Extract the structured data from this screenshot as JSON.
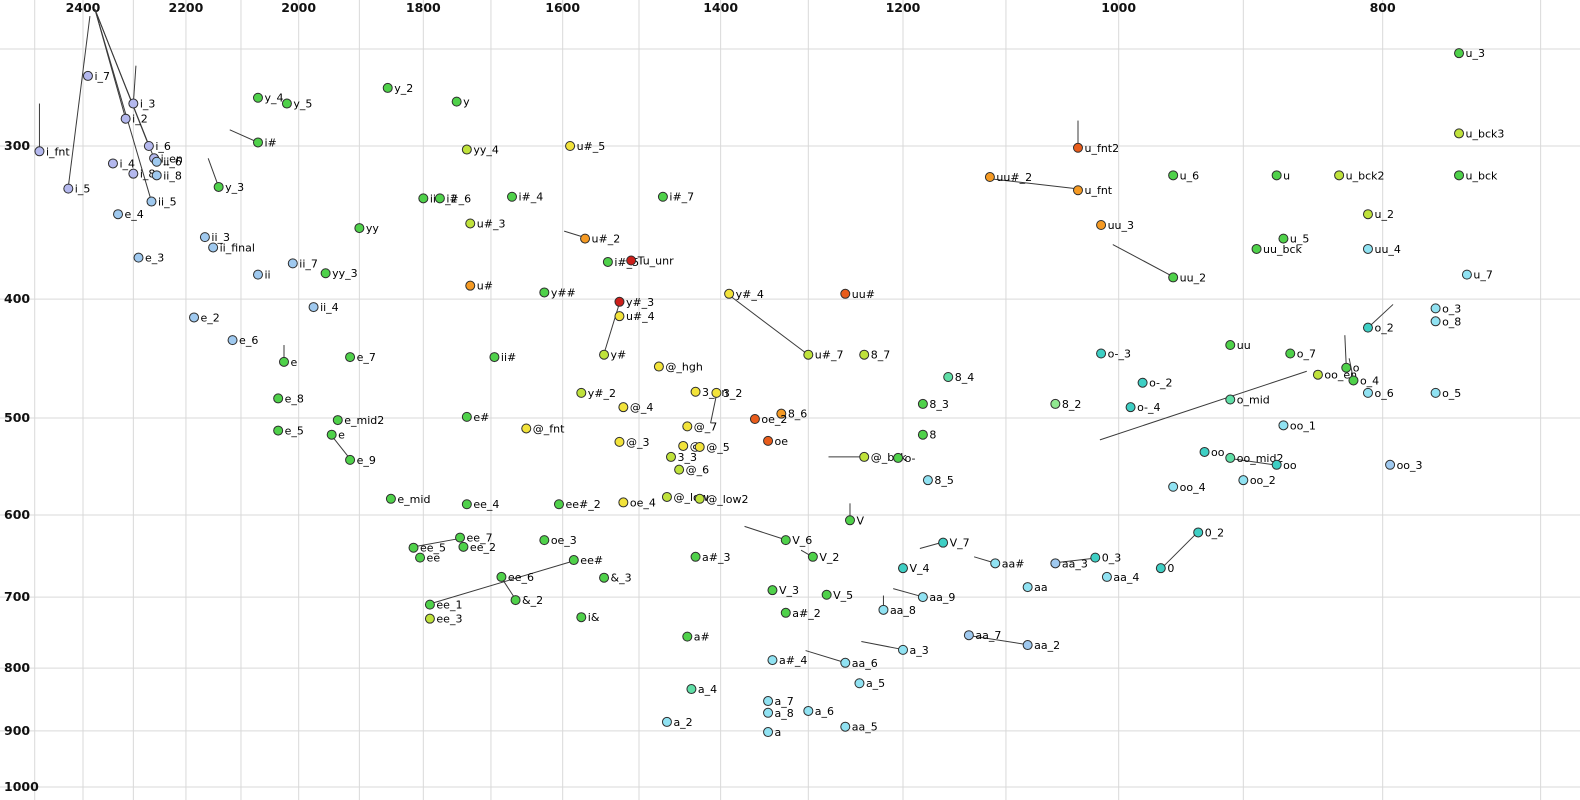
{
  "chart_data": {
    "type": "scatter",
    "title": "",
    "xlabel": "",
    "ylabel": "",
    "x_axis": {
      "scale": "log-reversed",
      "tick_labels": [
        2400,
        2200,
        2000,
        1800,
        1600,
        1400,
        1200,
        1000,
        800
      ],
      "grid_values": [
        2500,
        2400,
        2300,
        2200,
        2100,
        2000,
        1900,
        1800,
        1700,
        1600,
        1500,
        1400,
        1300,
        1200,
        1100,
        1000,
        900,
        800,
        700
      ]
    },
    "y_axis": {
      "scale": "log",
      "tick_labels": [
        300,
        400,
        500,
        600,
        700,
        800,
        900,
        1000
      ],
      "grid_values": [
        250,
        300,
        400,
        500,
        600,
        700,
        800,
        900,
        1000
      ]
    },
    "point_fields": [
      "label",
      "f2",
      "f1",
      "color_key"
    ],
    "points": [
      [
        "i_7",
        2390,
        263,
        "lav"
      ],
      [
        "i_3",
        2300,
        277,
        "lav"
      ],
      [
        "i_2",
        2315,
        285,
        "lav"
      ],
      [
        "i_6",
        2270,
        300,
        "lav"
      ],
      [
        "i_en",
        2260,
        307,
        "lav"
      ],
      [
        "i_fnt",
        2490,
        303,
        "lav"
      ],
      [
        "i_4",
        2340,
        310,
        "lav"
      ],
      [
        "i_8",
        2300,
        316,
        "lav"
      ],
      [
        "ii_6",
        2255,
        309,
        "lblu"
      ],
      [
        "ii_8",
        2255,
        317,
        "lblu"
      ],
      [
        "i_5",
        2430,
        325,
        "lav"
      ],
      [
        "ii_5",
        2265,
        333,
        "lblu"
      ],
      [
        "e_4",
        2330,
        341,
        "lblu"
      ],
      [
        "ii_3",
        2165,
        356,
        "lblu"
      ],
      [
        "e_3",
        2290,
        370,
        "lblu"
      ],
      [
        "ii_final",
        2150,
        363,
        "lblu"
      ],
      [
        "ii",
        2070,
        382,
        "lblu"
      ],
      [
        "ii_7",
        2010,
        374,
        "lblu"
      ],
      [
        "yy_3",
        1955,
        381,
        "grn"
      ],
      [
        "e_2",
        2185,
        414,
        "lblu"
      ],
      [
        "e_6",
        2115,
        432,
        "lblu"
      ],
      [
        "ii_4",
        1975,
        406,
        "lblu"
      ],
      [
        "y_4",
        2070,
        274,
        "grn"
      ],
      [
        "y_5",
        2020,
        277,
        "grn"
      ],
      [
        "y_2",
        1855,
        269,
        "grn"
      ],
      [
        "y",
        1750,
        276,
        "grn"
      ],
      [
        "i#",
        2070,
        298,
        "grn"
      ],
      [
        "y_3",
        2140,
        324,
        "grn"
      ],
      [
        "yy_4",
        1735,
        302,
        "ylg"
      ],
      [
        "u#_5",
        1590,
        300,
        "yel"
      ],
      [
        "i#_4",
        1670,
        330,
        "grn"
      ],
      [
        "ii#_2",
        1800,
        331,
        "grn"
      ],
      [
        "i#_6",
        1775,
        331,
        "grn"
      ],
      [
        "i#_7",
        1470,
        330,
        "grn"
      ],
      [
        "u#_3",
        1730,
        347,
        "ylg"
      ],
      [
        "yy",
        1900,
        350,
        "grn"
      ],
      [
        "u#_2",
        1570,
        357,
        "org"
      ],
      [
        "i#_5",
        1540,
        373,
        "grn"
      ],
      [
        "Tu_unr",
        1510,
        372,
        "red"
      ],
      [
        "uu_3",
        1015,
        348,
        "org"
      ],
      [
        "u_fnt2",
        1035,
        301,
        "rorg"
      ],
      [
        "uu#_2",
        1115,
        318,
        "org"
      ],
      [
        "u_fnt",
        1035,
        326,
        "org"
      ],
      [
        "u_6",
        955,
        317,
        "grn"
      ],
      [
        "u",
        875,
        317,
        "grn"
      ],
      [
        "u_bck2",
        830,
        317,
        "ylg"
      ],
      [
        "u_bck",
        750,
        317,
        "grn"
      ],
      [
        "u_3",
        750,
        252,
        "grn"
      ],
      [
        "u_bck3",
        750,
        293,
        "ylg"
      ],
      [
        "u_2",
        810,
        341,
        "ylg"
      ],
      [
        "u_5",
        870,
        357,
        "grn"
      ],
      [
        "uu_bck",
        890,
        364,
        "grn"
      ],
      [
        "uu_4",
        810,
        364,
        "cyan"
      ],
      [
        "u_7",
        745,
        382,
        "cyan"
      ],
      [
        "uu_2",
        955,
        384,
        "grn"
      ],
      [
        "uu#",
        1260,
        396,
        "rorg"
      ],
      [
        "y#_4",
        1390,
        396,
        "yel"
      ],
      [
        "y##",
        1625,
        395,
        "grn"
      ],
      [
        "u#",
        1730,
        390,
        "org"
      ],
      [
        "y#_3",
        1525,
        402,
        "red"
      ],
      [
        "u#_4",
        1525,
        413,
        "yel"
      ],
      [
        "y#",
        1545,
        444,
        "ylg"
      ],
      [
        "y#_2",
        1575,
        477,
        "ylg"
      ],
      [
        "u#_7",
        1300,
        444,
        "ylg"
      ],
      [
        "8_7",
        1240,
        444,
        "ylg"
      ],
      [
        "@_hgh",
        1475,
        454,
        "yel"
      ],
      [
        "3_en",
        1430,
        476,
        "yel"
      ],
      [
        "3_2",
        1405,
        477,
        "yel"
      ],
      [
        "ii#",
        1695,
        446,
        "grn"
      ],
      [
        "e_7",
        1915,
        446,
        "grn"
      ],
      [
        "e",
        2025,
        450,
        "grn"
      ],
      [
        "e_8",
        2035,
        482,
        "grn"
      ],
      [
        "e_mid2",
        1935,
        502,
        "grn"
      ],
      [
        "e_5",
        2035,
        512,
        "grn"
      ],
      [
        "e",
        1945,
        516,
        "grn"
      ],
      [
        "e_9",
        1915,
        541,
        "grn"
      ],
      [
        "e_mid",
        1850,
        582,
        "grn"
      ],
      [
        "e#",
        1735,
        499,
        "grn"
      ],
      [
        "@_fnt",
        1650,
        510,
        "yel"
      ],
      [
        "@_4",
        1520,
        490,
        "yel"
      ],
      [
        "@_7",
        1440,
        508,
        "yel"
      ],
      [
        "@_3",
        1525,
        523,
        "yel"
      ],
      [
        "@",
        1445,
        527,
        "yel"
      ],
      [
        "@_5",
        1425,
        528,
        "yel"
      ],
      [
        "3_3",
        1460,
        538,
        "ylg"
      ],
      [
        "@_6",
        1450,
        551,
        "ylg"
      ],
      [
        "@_low",
        1465,
        580,
        "ylg"
      ],
      [
        "@_low2",
        1425,
        582,
        "ylg"
      ],
      [
        "oe_4",
        1520,
        586,
        "yel"
      ],
      [
        "ee#_2",
        1605,
        588,
        "grn"
      ],
      [
        "ee_4",
        1735,
        588,
        "grn"
      ],
      [
        "oe_3",
        1625,
        629,
        "grn"
      ],
      [
        "ee_7",
        1745,
        626,
        "grn"
      ],
      [
        "ee_2",
        1740,
        637,
        "grn"
      ],
      [
        "ee_5",
        1815,
        638,
        "grn"
      ],
      [
        "ee",
        1805,
        650,
        "grn"
      ],
      [
        "ee#",
        1585,
        653,
        "grn"
      ],
      [
        "ee_6",
        1685,
        674,
        "grn"
      ],
      [
        "&_3",
        1545,
        675,
        "grn"
      ],
      [
        "&_2",
        1665,
        704,
        "grn"
      ],
      [
        "ee_1",
        1790,
        710,
        "grn"
      ],
      [
        "ee_3",
        1790,
        729,
        "ylg"
      ],
      [
        "i&",
        1575,
        727,
        "grn"
      ],
      [
        "a#_3",
        1430,
        649,
        "grn"
      ],
      [
        "a#",
        1440,
        754,
        "grn"
      ],
      [
        "a#_2",
        1325,
        721,
        "grn"
      ],
      [
        "a#_4",
        1340,
        788,
        "cyan"
      ],
      [
        "a_4",
        1435,
        832,
        "mint"
      ],
      [
        "a_2",
        1465,
        885,
        "cyan"
      ],
      [
        "a_7",
        1345,
        851,
        "cyan"
      ],
      [
        "a_8",
        1345,
        870,
        "cyan"
      ],
      [
        "a",
        1345,
        902,
        "cyan"
      ],
      [
        "a_6",
        1300,
        867,
        "cyan"
      ],
      [
        "aa_5",
        1260,
        893,
        "cyan"
      ],
      [
        "a_5",
        1245,
        823,
        "cyan"
      ],
      [
        "aa_6",
        1260,
        792,
        "cyan"
      ],
      [
        "a_3",
        1200,
        773,
        "cyan"
      ],
      [
        "aa_8",
        1220,
        717,
        "cyan"
      ],
      [
        "aa_9",
        1180,
        700,
        "cyan"
      ],
      [
        "V_3",
        1340,
        691,
        "grn"
      ],
      [
        "V_5",
        1280,
        697,
        "grn"
      ],
      [
        "V_2",
        1295,
        649,
        "grn"
      ],
      [
        "V_6",
        1325,
        629,
        "grn"
      ],
      [
        "V",
        1255,
        606,
        "grn"
      ],
      [
        "V_7",
        1160,
        632,
        "teal"
      ],
      [
        "V_4",
        1200,
        663,
        "teal"
      ],
      [
        "aa#",
        1110,
        657,
        "cyan"
      ],
      [
        "aa",
        1080,
        687,
        "cyan"
      ],
      [
        "aa_3",
        1055,
        657,
        "lblu"
      ],
      [
        "aa_4",
        1010,
        674,
        "cyan"
      ],
      [
        "aa_7",
        1135,
        752,
        "lblu"
      ],
      [
        "aa_2",
        1080,
        766,
        "lblu"
      ],
      [
        "8_4",
        1155,
        463,
        "mint"
      ],
      [
        "8_3",
        1180,
        487,
        "grn"
      ],
      [
        "8",
        1180,
        516,
        "grn"
      ],
      [
        "8_5",
        1175,
        562,
        "cyan"
      ],
      [
        "8_2",
        1055,
        487,
        "lgrn"
      ],
      [
        "8_6",
        1330,
        496,
        "org"
      ],
      [
        "oe_2",
        1360,
        501,
        "rorg"
      ],
      [
        "oe",
        1345,
        522,
        "rorg"
      ],
      [
        "@_bck",
        1240,
        538,
        "ylg"
      ],
      [
        "o-",
        1205,
        539,
        "grn"
      ],
      [
        "o-_3",
        1015,
        443,
        "teal"
      ],
      [
        "o-_2",
        980,
        468,
        "teal"
      ],
      [
        "o-_4",
        990,
        490,
        "teal"
      ],
      [
        "o_mid",
        910,
        483,
        "mint"
      ],
      [
        "o_7",
        865,
        443,
        "grn"
      ],
      [
        "oo_en",
        845,
        461,
        "ylg"
      ],
      [
        "o",
        825,
        455,
        "grn"
      ],
      [
        "o_4",
        820,
        466,
        "grn"
      ],
      [
        "o_6",
        810,
        477,
        "cyan"
      ],
      [
        "o_5",
        765,
        477,
        "cyan"
      ],
      [
        "o_3",
        765,
        407,
        "cyan"
      ],
      [
        "o_8",
        765,
        417,
        "cyan"
      ],
      [
        "o_2",
        810,
        422,
        "teal"
      ],
      [
        "uu",
        910,
        436,
        "grn"
      ],
      [
        "oo_1",
        870,
        507,
        "cyan"
      ],
      [
        "oo",
        930,
        533,
        "teal"
      ],
      [
        "oo_mid2",
        910,
        539,
        "mint"
      ],
      [
        "oo",
        875,
        546,
        "teal"
      ],
      [
        "oo_2",
        900,
        562,
        "cyan"
      ],
      [
        "oo_3",
        795,
        546,
        "lblu"
      ],
      [
        "oo_4",
        955,
        569,
        "cyan"
      ],
      [
        "0_3",
        1020,
        650,
        "teal"
      ],
      [
        "0",
        965,
        663,
        "teal"
      ],
      [
        "0_2",
        935,
        620,
        "teal"
      ]
    ],
    "lines": [
      [
        [
          2376,
          232
        ],
        [
          2315,
          285
        ]
      ],
      [
        [
          2376,
          232
        ],
        [
          2270,
          300
        ]
      ],
      [
        [
          2376,
          232
        ],
        [
          2260,
          307
        ]
      ],
      [
        [
          2376,
          232
        ],
        [
          2265,
          333
        ]
      ],
      [
        [
          2295,
          258
        ],
        [
          2300,
          277
        ]
      ],
      [
        [
          2490,
          277
        ],
        [
          2490,
          302
        ]
      ],
      [
        [
          2386,
          235
        ],
        [
          2430,
          324
        ]
      ],
      [
        [
          2120,
          291
        ],
        [
          2070,
          298
        ]
      ],
      [
        [
          2159,
          307
        ],
        [
          2140,
          324
        ]
      ],
      [
        [
          2025,
          436
        ],
        [
          2025,
          449
        ]
      ],
      [
        [
          1945,
          517
        ],
        [
          1915,
          540
        ]
      ],
      [
        [
          1815,
          637
        ],
        [
          1745,
          627
        ]
      ],
      [
        [
          1790,
          709
        ],
        [
          1585,
          654
        ]
      ],
      [
        [
          1685,
          675
        ],
        [
          1665,
          703
        ]
      ],
      [
        [
          1598,
          352
        ],
        [
          1572,
          356
        ]
      ],
      [
        [
          1525,
          403
        ],
        [
          1545,
          443
        ]
      ],
      [
        [
          1390,
          397
        ],
        [
          1302,
          443
        ]
      ],
      [
        [
          1405,
          479
        ],
        [
          1412,
          505
        ]
      ],
      [
        [
          1035,
          286
        ],
        [
          1035,
          300
        ]
      ],
      [
        [
          1115,
          319
        ],
        [
          1037,
          325
        ]
      ],
      [
        [
          1005,
          361
        ],
        [
          956,
          383
        ]
      ],
      [
        [
          1278,
          538
        ],
        [
          1243,
          538
        ]
      ],
      [
        [
          1016,
          521
        ],
        [
          853,
          458
        ]
      ],
      [
        [
          826,
          428
        ],
        [
          825,
          454
        ]
      ],
      [
        [
          823,
          447
        ],
        [
          820,
          465
        ]
      ],
      [
        [
          809,
          421
        ],
        [
          793,
          404
        ]
      ],
      [
        [
          908,
          540
        ],
        [
          877,
          546
        ]
      ],
      [
        [
          1053,
          656
        ],
        [
          1022,
          651
        ]
      ],
      [
        [
          963,
          661
        ],
        [
          937,
          622
        ]
      ],
      [
        [
          1133,
          753
        ],
        [
          1082,
          765
        ]
      ],
      [
        [
          1303,
          774
        ],
        [
          1262,
          791
        ]
      ],
      [
        [
          1243,
          761
        ],
        [
          1202,
          772
        ]
      ],
      [
        [
          1220,
          698
        ],
        [
          1220,
          716
        ]
      ],
      [
        [
          1210,
          689
        ],
        [
          1182,
          699
        ]
      ],
      [
        [
          1372,
          613
        ],
        [
          1327,
          628
        ]
      ],
      [
        [
          1308,
          641
        ],
        [
          1297,
          648
        ]
      ],
      [
        [
          1255,
          587
        ],
        [
          1255,
          604
        ]
      ],
      [
        [
          1183,
          639
        ],
        [
          1162,
          632
        ]
      ],
      [
        [
          1130,
          649
        ],
        [
          1112,
          656
        ]
      ]
    ]
  },
  "palette": {
    "lav": "#b4b8ee",
    "lblu": "#9fc9ef",
    "cyan": "#90e2f2",
    "teal": "#3ecfc4",
    "mint": "#5fdea6",
    "grn": "#4fd14a",
    "lgrn": "#90e890",
    "ylg": "#bfe23b",
    "yel": "#f2e33a",
    "org": "#f59a23",
    "rorg": "#e85c1b",
    "red": "#cc1f1a"
  },
  "colors": {
    "background": "#ffffff",
    "grid": "#d9d9d9",
    "tick_label": "#111111",
    "point_stroke": "#2d2d2d",
    "point_label": "#000000",
    "leader_line": "#3a3a3a"
  }
}
